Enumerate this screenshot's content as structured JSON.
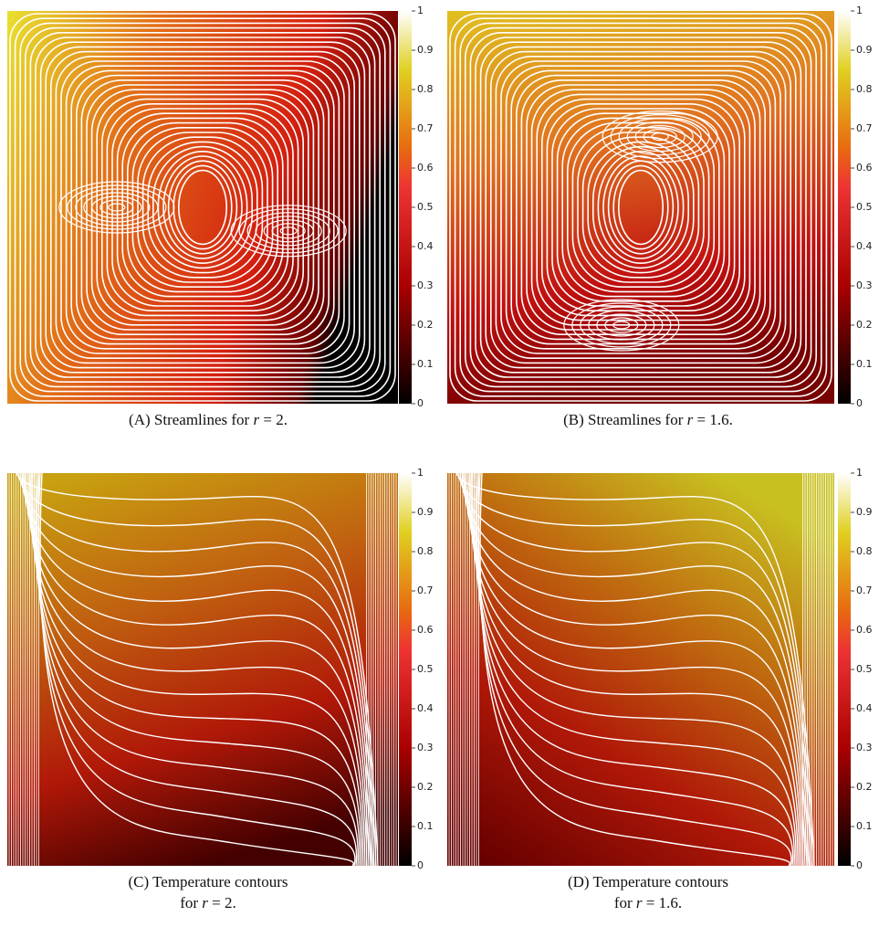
{
  "colorbar": {
    "ticks": [
      0,
      0.1,
      0.2,
      0.3,
      0.4,
      0.5,
      0.6,
      0.7,
      0.8,
      0.9,
      1
    ]
  },
  "panels": [
    {
      "label": "(A)",
      "text": "Streamlines for",
      "symbol": "r",
      "rest": "= 2."
    },
    {
      "label": "(B)",
      "text": "Streamlines for",
      "symbol": "r",
      "rest": "= 1.6."
    },
    {
      "label": "(C)",
      "text": "Temperature contours",
      "text2": "for",
      "symbol": "r",
      "rest": "= 2."
    },
    {
      "label": "(D)",
      "text": "Temperature contours",
      "text2": "for",
      "symbol": "r",
      "rest": "= 1.6."
    }
  ]
}
